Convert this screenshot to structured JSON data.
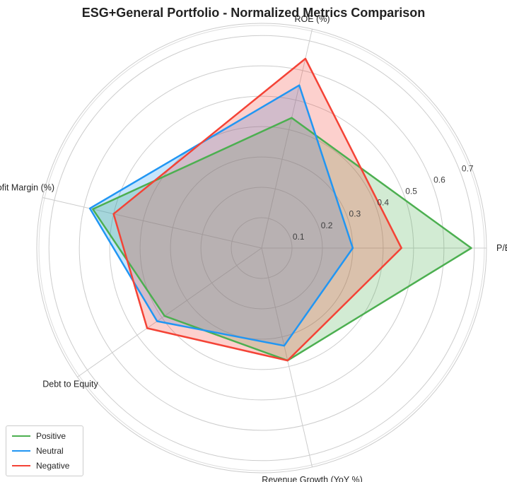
{
  "chart_data": {
    "type": "radar",
    "title": "ESG+General Portfolio - Normalized Metrics Comparison",
    "axes": [
      "P/E",
      "ROE (%)",
      "Profit Margin (%)",
      "Debt to Equity",
      "Revenue Growth (YoY %)"
    ],
    "axis_angles_deg": [
      0,
      77,
      167,
      215,
      283
    ],
    "rlim": [
      0,
      0.74
    ],
    "rticks": [
      0.1,
      0.2,
      0.3,
      0.4,
      0.5,
      0.6,
      0.7
    ],
    "tick_labels": [
      "0.1",
      "0.2",
      "0.3",
      "0.4",
      "0.5",
      "0.6",
      "0.7"
    ],
    "grid": true,
    "legend_position": "lower-left",
    "series": [
      {
        "name": "Positive",
        "color": "#4caf50",
        "values": [
          0.69,
          0.44,
          0.57,
          0.39,
          0.38
        ]
      },
      {
        "name": "Neutral",
        "color": "#2196f3",
        "values": [
          0.3,
          0.55,
          0.58,
          0.42,
          0.33
        ]
      },
      {
        "name": "Negative",
        "color": "#f44336",
        "values": [
          0.46,
          0.64,
          0.5,
          0.46,
          0.38
        ]
      }
    ]
  }
}
